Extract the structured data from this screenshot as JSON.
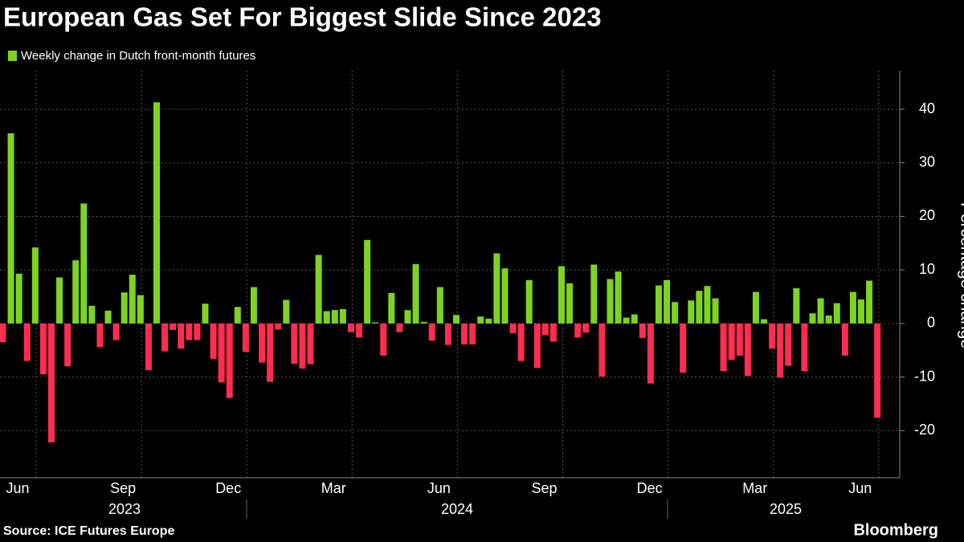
{
  "chart_data": {
    "type": "bar",
    "title": "European Gas Set For Biggest Slide Since 2023",
    "y_label": "Percentage change",
    "source": "Source: ICE Futures Europe",
    "brand": "Bloomberg",
    "x_month_labels": [
      "Jun",
      "Sep",
      "Dec",
      "Mar",
      "Jun",
      "Sep",
      "Dec",
      "Mar",
      "Jun"
    ],
    "x_year_labels": [
      "2023",
      "2024",
      "2025"
    ],
    "series": [
      {
        "name": "Weekly change in Dutch front-month futures",
        "color": "#7ed321",
        "negative_color": "#ff2d4f",
        "values": [
          -3.5,
          35.5,
          9.3,
          -7,
          14.2,
          -9.5,
          -22.2,
          8.6,
          -8,
          11.8,
          22.4,
          3.3,
          -4.4,
          2.4,
          -3.1,
          5.8,
          9.1,
          5.3,
          -8.7,
          41.3,
          -5.2,
          -1.2,
          -4.7,
          -3.1,
          -3.1,
          3.7,
          -6.6,
          -11,
          -13.9,
          3.1,
          -5.3,
          6.8,
          -7.3,
          -10.9,
          -1.1,
          4.4,
          -7.5,
          -8.4,
          -7.6,
          12.8,
          2.3,
          2.5,
          2.7,
          -1.6,
          -2.6,
          15.6,
          0.2,
          -6,
          5.7,
          -1.6,
          2.5,
          11.1,
          0.3,
          -3.2,
          6.8,
          -4,
          1.6,
          -3.9,
          -3.9,
          1.3,
          0.9,
          13.1,
          10.3,
          -1.8,
          -7,
          8.1,
          -8.3,
          -2.2,
          -3.4,
          10.7,
          7.5,
          -2.6,
          -1.7,
          11,
          -9.9,
          8.3,
          9.7,
          1.1,
          1.7,
          -2.7,
          -11.2,
          7.1,
          8.1,
          4,
          -9.2,
          4.3,
          6.1,
          7,
          4.7,
          -8.9,
          -6.8,
          -6,
          -9.8,
          5.9,
          0.8,
          -4.7,
          -10.1,
          -7.9,
          6.6,
          -8.9,
          1.9,
          4.7,
          1.5,
          3.8,
          -6,
          5.9,
          4.5,
          8,
          -17.6
        ]
      }
    ],
    "ylim": [
      -28.8,
      47.2
    ],
    "yticks": [
      -20,
      -10,
      0,
      10,
      20,
      30,
      40
    ],
    "grid": true
  }
}
